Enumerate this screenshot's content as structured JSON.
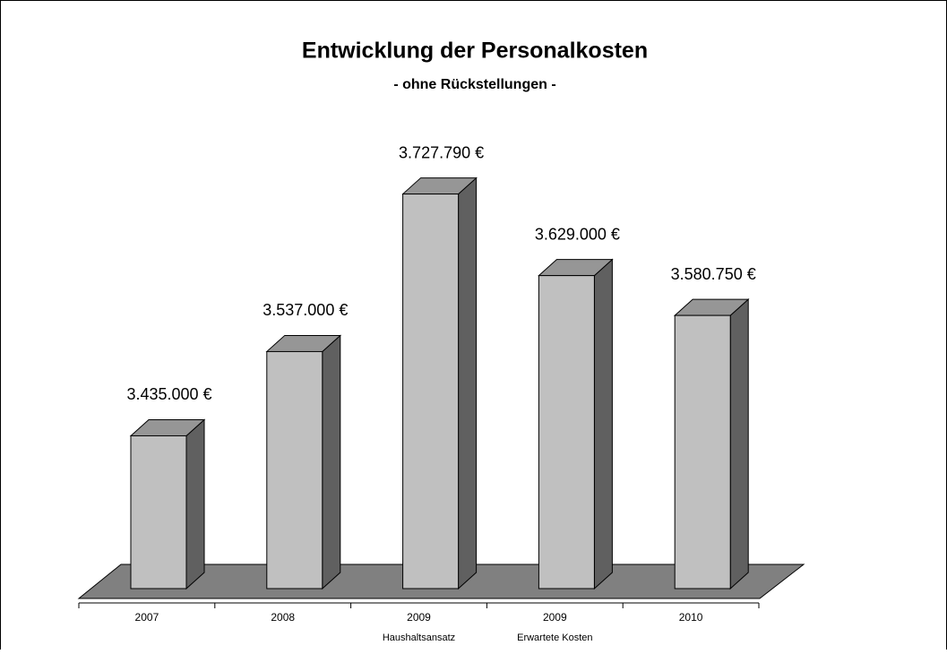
{
  "chart_data": {
    "type": "bar3d",
    "title": "Entwicklung der Personalkosten",
    "subtitle": "- ohne Rückstellungen -",
    "categories": [
      "2007",
      "2008",
      "2009",
      "2009",
      "2010"
    ],
    "category_sublabels": [
      null,
      null,
      "Haushaltsansatz",
      "Erwartete Kosten",
      null
    ],
    "values": [
      3435000,
      3537000,
      3727790,
      3629000,
      3580750
    ],
    "value_labels": [
      "3.435.000 €",
      "3.537.000 €",
      "3.727.790 €",
      "3.629.000 €",
      "3.580.750 €"
    ],
    "color": "#c0c0c0",
    "ylim": [
      3250000,
      3800000
    ]
  }
}
